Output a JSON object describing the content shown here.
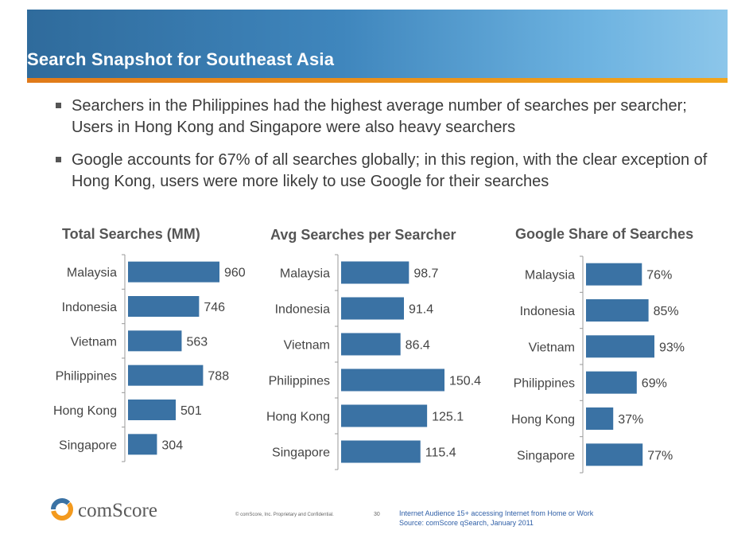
{
  "slide": {
    "title": "Search Snapshot for Southeast Asia",
    "bullets": [
      "Searchers in the Philippines had the highest average number of searches per searcher; Users in Hong Kong and Singapore were also heavy searchers",
      "Google accounts for 67% of all searches globally; in this region, with the clear exception of Hong Kong, users were more likely to use Google for their searches"
    ]
  },
  "colors": {
    "bar": "#3a72a4",
    "header_start": "#2f6b9c",
    "header_end": "#8cc6ea",
    "stripe": "#e9901b"
  },
  "chart_data": [
    {
      "type": "bar",
      "orientation": "horizontal",
      "title": "Total Searches (MM)",
      "categories": [
        "Malaysia",
        "Indonesia",
        "Vietnam",
        "Philippines",
        "Hong Kong",
        "Singapore"
      ],
      "values": [
        960,
        746,
        563,
        788,
        501,
        304
      ],
      "labels": [
        "960",
        "746",
        "563",
        "788",
        "501",
        "304"
      ],
      "xlim": [
        0,
        1000
      ]
    },
    {
      "type": "bar",
      "orientation": "horizontal",
      "title": "Avg Searches per Searcher",
      "categories": [
        "Malaysia",
        "Indonesia",
        "Vietnam",
        "Philippines",
        "Hong Kong",
        "Singapore"
      ],
      "values": [
        98.7,
        91.4,
        86.4,
        150.4,
        125.1,
        115.4
      ],
      "labels": [
        "98.7",
        "91.4",
        "86.4",
        "150.4",
        "125.1",
        "115.4"
      ],
      "xlim": [
        0,
        160
      ]
    },
    {
      "type": "bar",
      "orientation": "horizontal",
      "title": "Google Share of Searches",
      "categories": [
        "Malaysia",
        "Indonesia",
        "Vietnam",
        "Philippines",
        "Hong Kong",
        "Singapore"
      ],
      "values": [
        76,
        85,
        93,
        69,
        37,
        77
      ],
      "labels": [
        "76%",
        "85%",
        "93%",
        "69%",
        "37%",
        "77%"
      ],
      "xlim": [
        0,
        100
      ]
    }
  ],
  "footer": {
    "logo_text": "comScore",
    "copyright": "© comScore, Inc.  Proprietary and Confidential.",
    "page": "30",
    "source_line1": "Internet Audience 15+ accessing Internet from Home or Work",
    "source_line2": "Source:  comScore qSearch, January 2011"
  }
}
